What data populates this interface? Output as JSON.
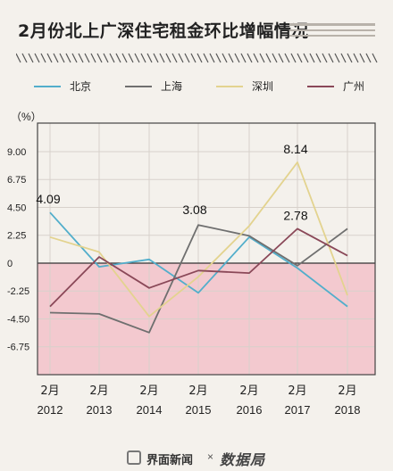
{
  "title": "2月份北上广深住宅租金环比增幅情况",
  "footer": {
    "source": "界面新闻",
    "separator": "×",
    "partner_logo": "数据局"
  },
  "colors": {
    "beijing": "#52aecb",
    "shanghai": "#6f6f6f",
    "shenzhen": "#e3d38f",
    "guangzhou": "#8a4858",
    "negative_band": "#f3c9cf"
  },
  "chart_data": {
    "type": "line",
    "title": "2月份北上广深住宅租金环比增幅情况",
    "unit_label": "（%）",
    "xlabel": "",
    "ylabel": "",
    "x_top": [
      "2月",
      "2月",
      "2月",
      "2月",
      "2月",
      "2月",
      "2月"
    ],
    "x": [
      "2012",
      "2013",
      "2014",
      "2015",
      "2016",
      "2017",
      "2018"
    ],
    "y_ticks": [
      "9.00",
      "6.75",
      "4.50",
      "2.25",
      "0",
      "-2.25",
      "-4.50",
      "-6.75"
    ],
    "ylim": [
      -9.0,
      11.3
    ],
    "grid": true,
    "legend_position": "top",
    "series": [
      {
        "name": "北京",
        "key": "beijing",
        "values": [
          4.09,
          -0.3,
          0.3,
          -2.4,
          2.1,
          -0.4,
          -3.5
        ]
      },
      {
        "name": "上海",
        "key": "shanghai",
        "values": [
          -4.0,
          -4.1,
          -5.6,
          3.08,
          2.2,
          -0.2,
          2.78
        ]
      },
      {
        "name": "深圳",
        "key": "shenzhen",
        "values": [
          2.1,
          0.9,
          -4.3,
          -1.1,
          3.0,
          8.14,
          -2.6
        ]
      },
      {
        "name": "广州",
        "key": "guangzhou",
        "values": [
          -3.5,
          0.5,
          -2.0,
          -0.6,
          -0.8,
          2.78,
          0.6
        ]
      }
    ],
    "annotations": [
      {
        "text": "4.09",
        "x": "2012",
        "y": 4.09
      },
      {
        "text": "3.08",
        "x": "2015",
        "y": 3.08
      },
      {
        "text": "8.14",
        "x": "2017",
        "y": 8.14
      },
      {
        "text": "2.78",
        "x": "2017",
        "y": 2.78
      }
    ]
  }
}
